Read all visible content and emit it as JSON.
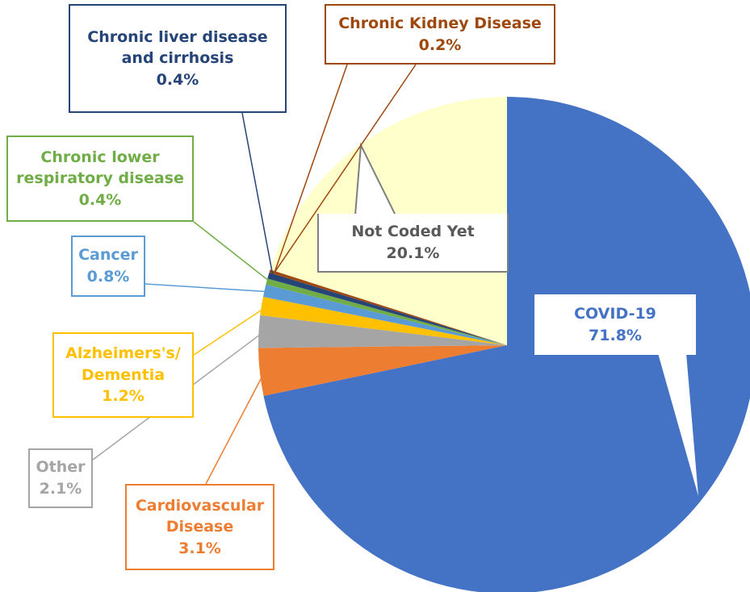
{
  "chart_data": {
    "type": "pie",
    "categories": [
      "COVID-19",
      "Cardiovascular Disease",
      "Other",
      "Alzheimers's/ Dementia",
      "Cancer",
      "Chronic lower respiratory disease",
      "Chronic liver disease and cirrhosis",
      "Chronic Kidney Disease",
      "Not Coded Yet"
    ],
    "values": [
      71.8,
      3.1,
      2.1,
      1.2,
      0.8,
      0.4,
      0.4,
      0.2,
      20.1
    ],
    "value_labels": [
      "71.8%",
      "3.1%",
      "2.1%",
      "1.2%",
      "0.8%",
      "0.4%",
      "0.4%",
      "0.2%",
      "20.1%"
    ],
    "colors": [
      "#4472c4",
      "#ed7d31",
      "#a5a5a5",
      "#ffc000",
      "#5b9bd5",
      "#70ad47",
      "#264478",
      "#9e480e",
      "#ffffcc"
    ],
    "label_colors": [
      "#4472c4",
      "#ed7d31",
      "#a5a5a5",
      "#ffc000",
      "#5b9bd5",
      "#70ad47",
      "#264478",
      "#9e480e",
      "#595959"
    ],
    "border_colors": [
      "#ffffff",
      "#ed7d31",
      "#a5a5a5",
      "#ffc000",
      "#5b9bd5",
      "#70ad47",
      "#264478",
      "#9e480e",
      "#7f7f7f"
    ]
  }
}
